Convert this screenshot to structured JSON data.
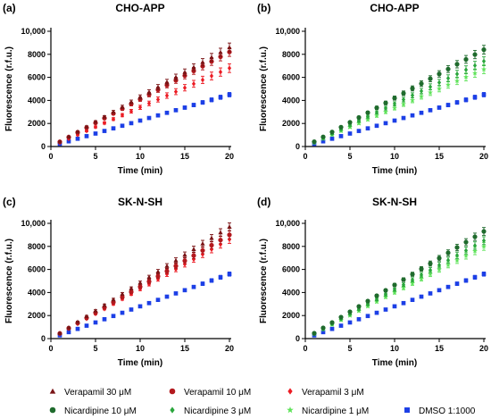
{
  "chart_data": [
    {
      "type": "scatter",
      "panel_label": "(a)",
      "title": "CHO-APP",
      "xlabel": "Time (min)",
      "ylabel": "Fluorescence  (r.f.u.)",
      "xlim": [
        0,
        20
      ],
      "ylim": [
        0,
        10000
      ],
      "xticks": [
        0,
        5,
        10,
        15,
        20
      ],
      "yticks": [
        0,
        2000,
        4000,
        6000,
        8000,
        10000
      ],
      "ytick_labels": [
        "0",
        "2000",
        "4000",
        "6000",
        "8000",
        "10,000"
      ],
      "x": [
        1,
        2,
        3,
        4,
        5,
        6,
        7,
        8,
        9,
        10,
        11,
        12,
        13,
        14,
        15,
        16,
        17,
        18,
        19,
        20
      ],
      "series": [
        {
          "name": "Verapamil 30 μM",
          "marker": "triangle",
          "color": "#7a1416",
          "values": [
            430,
            860,
            1290,
            1720,
            2150,
            2580,
            3010,
            3440,
            3870,
            4300,
            4730,
            5160,
            5590,
            6020,
            6450,
            6880,
            7310,
            7740,
            8170,
            8600
          ],
          "errors": [
            50,
            60,
            70,
            80,
            90,
            100,
            120,
            140,
            160,
            180,
            200,
            220,
            240,
            260,
            280,
            300,
            320,
            340,
            360,
            380
          ]
        },
        {
          "name": "Verapamil 10 μM",
          "marker": "circle",
          "color": "#b3191e",
          "values": [
            410,
            820,
            1230,
            1640,
            2050,
            2460,
            2870,
            3280,
            3690,
            4100,
            4510,
            4920,
            5330,
            5740,
            6150,
            6560,
            6970,
            7380,
            7790,
            8200
          ],
          "errors": [
            50,
            60,
            70,
            80,
            90,
            100,
            120,
            140,
            160,
            180,
            200,
            220,
            240,
            260,
            280,
            300,
            320,
            340,
            360,
            380
          ]
        },
        {
          "name": "Verapamil 3 μM",
          "marker": "diamond",
          "color": "#ec1c24",
          "values": [
            340,
            680,
            1020,
            1360,
            1700,
            2040,
            2380,
            2720,
            3060,
            3400,
            3740,
            4080,
            4420,
            4760,
            5100,
            5440,
            5780,
            6120,
            6460,
            6800
          ],
          "errors": [
            50,
            60,
            70,
            80,
            90,
            100,
            120,
            140,
            160,
            180,
            200,
            220,
            240,
            260,
            280,
            300,
            320,
            340,
            360,
            380
          ]
        },
        {
          "name": "DMSO 1:1000",
          "marker": "square",
          "color": "#1c3fe6",
          "values": [
            225,
            450,
            675,
            900,
            1125,
            1350,
            1575,
            1800,
            2025,
            2250,
            2475,
            2700,
            2925,
            3150,
            3375,
            3600,
            3825,
            4050,
            4275,
            4500
          ],
          "errors": [
            30,
            35,
            40,
            45,
            50,
            55,
            60,
            70,
            80,
            90,
            100,
            110,
            120,
            130,
            140,
            150,
            160,
            170,
            180,
            190
          ]
        }
      ]
    },
    {
      "type": "scatter",
      "panel_label": "(b)",
      "title": "CHO-APP",
      "xlabel": "Time (min)",
      "ylabel": "Fluorescence  (r.f.u.)",
      "xlim": [
        0,
        20
      ],
      "ylim": [
        0,
        10000
      ],
      "xticks": [
        0,
        5,
        10,
        15,
        20
      ],
      "yticks": [
        0,
        2000,
        4000,
        6000,
        8000,
        10000
      ],
      "ytick_labels": [
        "0",
        "2000",
        "4000",
        "6000",
        "8000",
        "10,000"
      ],
      "x": [
        1,
        2,
        3,
        4,
        5,
        6,
        7,
        8,
        9,
        10,
        11,
        12,
        13,
        14,
        15,
        16,
        17,
        18,
        19,
        20
      ],
      "series": [
        {
          "name": "Nicardipine 10 μM",
          "marker": "circle",
          "color": "#1f6b2d",
          "values": [
            420,
            840,
            1260,
            1680,
            2100,
            2520,
            2940,
            3360,
            3780,
            4200,
            4620,
            5040,
            5460,
            5880,
            6300,
            6720,
            7140,
            7560,
            7980,
            8400
          ],
          "errors": [
            50,
            60,
            70,
            80,
            90,
            100,
            120,
            140,
            160,
            180,
            200,
            220,
            240,
            260,
            280,
            300,
            320,
            340,
            360,
            380
          ]
        },
        {
          "name": "Nicardipine 3 μM",
          "marker": "diamond",
          "color": "#2aa63c",
          "values": [
            370,
            740,
            1110,
            1480,
            1850,
            2220,
            2590,
            2960,
            3330,
            3700,
            4070,
            4440,
            4810,
            5180,
            5550,
            5920,
            6290,
            6660,
            7030,
            7400
          ],
          "errors": [
            50,
            60,
            70,
            80,
            90,
            100,
            120,
            140,
            160,
            180,
            200,
            220,
            240,
            260,
            280,
            300,
            320,
            340,
            360,
            380
          ]
        },
        {
          "name": "Nicardipine 1 μM",
          "marker": "star",
          "color": "#5fe35a",
          "values": [
            335,
            670,
            1005,
            1340,
            1675,
            2010,
            2345,
            2680,
            3015,
            3350,
            3685,
            4020,
            4355,
            4690,
            5025,
            5360,
            5695,
            6030,
            6365,
            6700
          ],
          "errors": [
            50,
            60,
            70,
            80,
            90,
            100,
            120,
            140,
            160,
            180,
            200,
            220,
            240,
            260,
            280,
            300,
            320,
            340,
            360,
            380
          ]
        },
        {
          "name": "DMSO 1:1000",
          "marker": "square",
          "color": "#1c3fe6",
          "values": [
            225,
            450,
            675,
            900,
            1125,
            1350,
            1575,
            1800,
            2025,
            2250,
            2475,
            2700,
            2925,
            3150,
            3375,
            3600,
            3825,
            4050,
            4275,
            4500
          ],
          "errors": [
            30,
            35,
            40,
            45,
            50,
            55,
            60,
            70,
            80,
            90,
            100,
            110,
            120,
            130,
            140,
            150,
            160,
            170,
            180,
            190
          ]
        }
      ]
    },
    {
      "type": "scatter",
      "panel_label": "(c)",
      "title": "SK-N-SH",
      "xlabel": "Time (min)",
      "ylabel": "Fluorescence  (r.f.u.)",
      "xlim": [
        0,
        20
      ],
      "ylim": [
        0,
        10000
      ],
      "xticks": [
        0,
        5,
        10,
        15,
        20
      ],
      "yticks": [
        0,
        2000,
        4000,
        6000,
        8000,
        10000
      ],
      "ytick_labels": [
        "0",
        "2000",
        "4000",
        "6000",
        "8000",
        "10,000"
      ],
      "x": [
        1,
        2,
        3,
        4,
        5,
        6,
        7,
        8,
        9,
        10,
        11,
        12,
        13,
        14,
        15,
        16,
        17,
        18,
        19,
        20
      ],
      "series": [
        {
          "name": "Verapamil 30 μM",
          "marker": "triangle",
          "color": "#7a1416",
          "values": [
            485,
            970,
            1455,
            1940,
            2425,
            2910,
            3395,
            3880,
            4365,
            4850,
            5335,
            5820,
            6305,
            6790,
            7275,
            7760,
            8245,
            8730,
            9215,
            9700
          ],
          "errors": [
            40,
            50,
            60,
            70,
            80,
            90,
            100,
            110,
            120,
            140,
            160,
            180,
            200,
            220,
            240,
            260,
            280,
            300,
            320,
            340
          ]
        },
        {
          "name": "Verapamil 10 μM",
          "marker": "circle",
          "color": "#b3191e",
          "values": [
            450,
            900,
            1350,
            1800,
            2250,
            2700,
            3150,
            3600,
            4050,
            4500,
            4950,
            5400,
            5850,
            6300,
            6750,
            7200,
            7650,
            8100,
            8550,
            9000
          ],
          "errors": [
            40,
            50,
            60,
            70,
            80,
            90,
            100,
            110,
            120,
            140,
            160,
            180,
            200,
            220,
            240,
            260,
            280,
            300,
            320,
            340
          ]
        },
        {
          "name": "Verapamil 3 μM",
          "marker": "diamond",
          "color": "#ec1c24",
          "values": [
            430,
            860,
            1290,
            1720,
            2150,
            2580,
            3010,
            3440,
            3870,
            4300,
            4730,
            5160,
            5590,
            6020,
            6450,
            6880,
            7310,
            7740,
            8170,
            8600
          ],
          "errors": [
            40,
            50,
            60,
            70,
            80,
            90,
            100,
            110,
            120,
            140,
            160,
            180,
            200,
            220,
            240,
            260,
            280,
            300,
            320,
            340
          ]
        },
        {
          "name": "DMSO 1:1000",
          "marker": "square",
          "color": "#1c3fe6",
          "values": [
            280,
            560,
            840,
            1120,
            1400,
            1680,
            1960,
            2240,
            2520,
            2800,
            3080,
            3360,
            3640,
            3920,
            4200,
            4480,
            4760,
            5040,
            5320,
            5600
          ],
          "errors": [
            30,
            35,
            40,
            45,
            50,
            55,
            60,
            65,
            70,
            80,
            90,
            100,
            110,
            120,
            130,
            140,
            150,
            160,
            170,
            180
          ]
        }
      ]
    },
    {
      "type": "scatter",
      "panel_label": "(d)",
      "title": "SK-N-SH",
      "xlabel": "Time (min)",
      "ylabel": "Fluorescence  (r.f.u.)",
      "xlim": [
        0,
        20
      ],
      "ylim": [
        0,
        10000
      ],
      "xticks": [
        0,
        5,
        10,
        15,
        20
      ],
      "yticks": [
        0,
        2000,
        4000,
        6000,
        8000,
        10000
      ],
      "ytick_labels": [
        "0",
        "2000",
        "4000",
        "6000",
        "8000",
        "10,000"
      ],
      "x": [
        1,
        2,
        3,
        4,
        5,
        6,
        7,
        8,
        9,
        10,
        11,
        12,
        13,
        14,
        15,
        16,
        17,
        18,
        19,
        20
      ],
      "series": [
        {
          "name": "Nicardipine 10 μM",
          "marker": "circle",
          "color": "#1f6b2d",
          "values": [
            465,
            930,
            1395,
            1860,
            2325,
            2790,
            3255,
            3720,
            4185,
            4650,
            5115,
            5580,
            6045,
            6510,
            6975,
            7440,
            7905,
            8370,
            8835,
            9300
          ],
          "errors": [
            40,
            50,
            60,
            70,
            80,
            90,
            100,
            110,
            120,
            140,
            160,
            180,
            200,
            220,
            240,
            260,
            280,
            300,
            320,
            340
          ]
        },
        {
          "name": "Nicardipine 3 μM",
          "marker": "diamond",
          "color": "#2aa63c",
          "values": [
            425,
            850,
            1275,
            1700,
            2125,
            2550,
            2975,
            3400,
            3825,
            4250,
            4675,
            5100,
            5525,
            5950,
            6375,
            6800,
            7225,
            7650,
            8075,
            8500
          ],
          "errors": [
            40,
            50,
            60,
            70,
            80,
            90,
            100,
            110,
            120,
            140,
            160,
            180,
            200,
            220,
            240,
            260,
            280,
            300,
            320,
            340
          ]
        },
        {
          "name": "Nicardipine 1 μM",
          "marker": "star",
          "color": "#5fe35a",
          "values": [
            400,
            800,
            1200,
            1600,
            2000,
            2400,
            2800,
            3200,
            3600,
            4000,
            4400,
            4800,
            5200,
            5600,
            6000,
            6400,
            6800,
            7200,
            7600,
            8000
          ],
          "errors": [
            40,
            50,
            60,
            70,
            80,
            90,
            100,
            110,
            120,
            140,
            160,
            180,
            200,
            220,
            240,
            260,
            280,
            300,
            320,
            340
          ]
        },
        {
          "name": "DMSO 1:1000",
          "marker": "square",
          "color": "#1c3fe6",
          "values": [
            280,
            560,
            840,
            1120,
            1400,
            1680,
            1960,
            2240,
            2520,
            2800,
            3080,
            3360,
            3640,
            3920,
            4200,
            4480,
            4760,
            5040,
            5320,
            5600
          ],
          "errors": [
            30,
            35,
            40,
            45,
            50,
            55,
            60,
            65,
            70,
            80,
            90,
            100,
            110,
            120,
            130,
            140,
            150,
            160,
            170,
            180
          ]
        }
      ]
    }
  ],
  "legend": {
    "placement": "bottom",
    "entries": [
      {
        "name": "Verapamil 30 μM",
        "marker": "triangle",
        "color": "#7a1416"
      },
      {
        "name": "Verapamil 10 μM",
        "marker": "circle",
        "color": "#b3191e"
      },
      {
        "name": "Verapamil 3 μM",
        "marker": "diamond",
        "color": "#ec1c24"
      },
      {
        "name": "Nicardipine 10 μM",
        "marker": "circle",
        "color": "#1f6b2d"
      },
      {
        "name": "Nicardipine 3 μM",
        "marker": "diamond",
        "color": "#2aa63c"
      },
      {
        "name": "Nicardipine 1 μM",
        "marker": "star",
        "color": "#5fe35a"
      },
      {
        "name": "DMSO 1:1000",
        "marker": "square",
        "color": "#1c3fe6"
      }
    ]
  }
}
